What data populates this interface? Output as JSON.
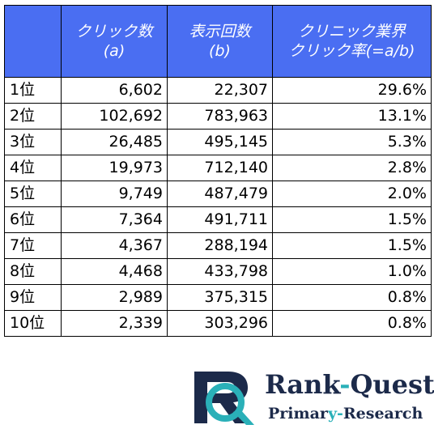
{
  "table": {
    "headers": [
      {
        "line1": "",
        "line2": ""
      },
      {
        "line1": "クリック数",
        "line2": "(a)"
      },
      {
        "line1": "表示回数",
        "line2": "(b)"
      },
      {
        "line1": "クリニック業界",
        "line2": "クリック率(=a/b)"
      }
    ],
    "rows": [
      {
        "rank": "1位",
        "clicks": "6,602",
        "impressions": "22,307",
        "ctr": "29.6%"
      },
      {
        "rank": "2位",
        "clicks": "102,692",
        "impressions": "783,963",
        "ctr": "13.1%"
      },
      {
        "rank": "3位",
        "clicks": "26,485",
        "impressions": "495,145",
        "ctr": "5.3%"
      },
      {
        "rank": "4位",
        "clicks": "19,973",
        "impressions": "712,140",
        "ctr": "2.8%"
      },
      {
        "rank": "5位",
        "clicks": "9,749",
        "impressions": "487,479",
        "ctr": "2.0%"
      },
      {
        "rank": "6位",
        "clicks": "7,364",
        "impressions": "491,711",
        "ctr": "1.5%"
      },
      {
        "rank": "7位",
        "clicks": "4,367",
        "impressions": "288,194",
        "ctr": "1.5%"
      },
      {
        "rank": "8位",
        "clicks": "4,468",
        "impressions": "433,798",
        "ctr": "1.0%"
      },
      {
        "rank": "9位",
        "clicks": "2,989",
        "impressions": "375,315",
        "ctr": "0.8%"
      },
      {
        "rank": "10位",
        "clicks": "2,339",
        "impressions": "303,296",
        "ctr": "0.8%"
      }
    ]
  },
  "logo": {
    "title_part1": "Rank",
    "title_dash": "-",
    "title_part2": "Quest",
    "sub_part1": "Primar",
    "sub_highlight": "y",
    "sub_dash": "-",
    "sub_part2": "Research",
    "colors": {
      "navy": "#1c2a4a",
      "teal": "#2ab0b8"
    }
  },
  "colors": {
    "header_bg": "#4a6ef2",
    "header_text": "#ffffff"
  }
}
